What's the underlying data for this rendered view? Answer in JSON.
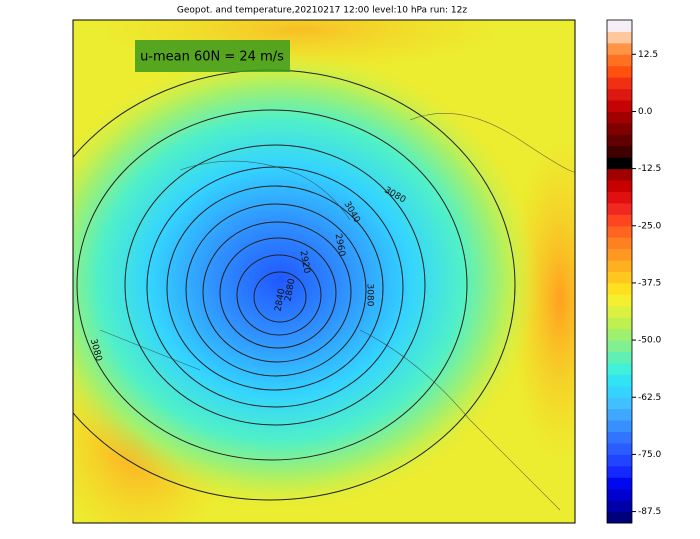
{
  "title": "Geopot. and temperature,20210217 12:00 level:10 hPa run: 12z",
  "annotation": "u-mean 60N = 24 m/s",
  "contour_labels": [
    "3080",
    "3080",
    "3040",
    "2960",
    "2920",
    "2880",
    "2840",
    "3080"
  ],
  "colorbar": {
    "lim": [
      -90,
      20
    ],
    "ticks": [
      12.5,
      {
        "value": 0,
        "label": "0.0"
      },
      -12.5,
      {
        "value": -25,
        "label": "-25.0"
      },
      -37.5,
      {
        "value": -50,
        "label": "-50.0"
      },
      -62.5,
      {
        "value": -75,
        "label": "-75.0"
      },
      -87.5
    ],
    "colors": [
      "#00007a",
      "#0000a8",
      "#0000d0",
      "#0008f0",
      "#1428ff",
      "#2044ff",
      "#2a5cff",
      "#3274ff",
      "#3890ff",
      "#3ea8ff",
      "#40c0ff",
      "#34d4ff",
      "#30e4f4",
      "#40f0d8",
      "#60f0b4",
      "#80f090",
      "#a0f070",
      "#c0f050",
      "#dcf040",
      "#f4f030",
      "#ffe020",
      "#ffc820",
      "#ffb020",
      "#ff9820",
      "#ff8020",
      "#ff6420",
      "#ff4420",
      "#f02820",
      "#e01010",
      "#c80000",
      "#a00000",
      "#000000",
      "#400000",
      "#600000",
      "#800000",
      "#a00000",
      "#c40404",
      "#dc1810",
      "#f03010",
      "#ff5010",
      "#ff7020",
      "#ff9444",
      "#ffc89c",
      "#f6eef6"
    ]
  }
}
